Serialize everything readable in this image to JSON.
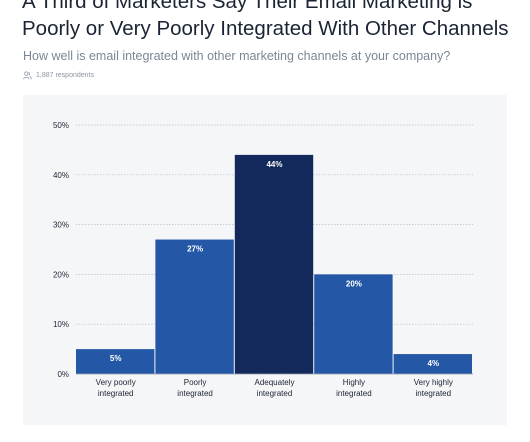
{
  "header": {
    "title_line1": "A Third of Marketers Say Their Email Marketing is",
    "title_line2": "Poorly or Very Poorly Integrated With Other Channels",
    "subtitle": "How well is email integrated with other marketing channels at your company?",
    "respondents": "1,887 respondents",
    "respondents_icon": "people-icon"
  },
  "colors": {
    "bar": "#2458a6",
    "bar_highlight": "#13295c",
    "panel": "#f4f6f8",
    "grid": "#b9c0c8"
  },
  "chart_data": {
    "type": "bar",
    "categories": [
      [
        "Very poorly",
        "integrated"
      ],
      [
        "Poorly",
        "integrated"
      ],
      [
        "Adequately",
        "integrated"
      ],
      [
        "Highly",
        "integrated"
      ],
      [
        "Very highly",
        "integrated"
      ]
    ],
    "values": [
      5,
      27,
      44,
      20,
      4
    ],
    "value_labels": [
      "5%",
      "27%",
      "44%",
      "20%",
      "4%"
    ],
    "highlight_index": 2,
    "yticks": [
      0,
      10,
      20,
      30,
      40,
      50
    ],
    "ytick_labels": [
      "0%",
      "10%",
      "20%",
      "30%",
      "40%",
      "50%"
    ],
    "ylim": [
      0,
      50
    ],
    "grid": true
  }
}
